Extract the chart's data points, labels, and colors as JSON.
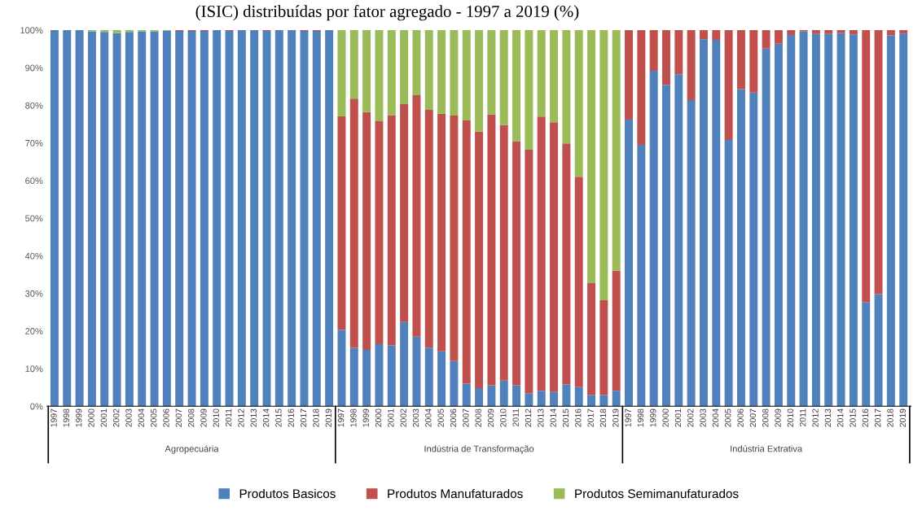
{
  "chart_data": {
    "type": "bar",
    "stacked": true,
    "title": "(ISIC) distribuídas por fator agregado - 1997 a 2019 (%)",
    "categories": [
      "1997",
      "1998",
      "1999",
      "2000",
      "2001",
      "2002",
      "2003",
      "2004",
      "2005",
      "2006",
      "2007",
      "2008",
      "2009",
      "2010",
      "2011",
      "2012",
      "2013",
      "2014",
      "2015",
      "2016",
      "2017",
      "2018",
      "2019",
      "1997",
      "1998",
      "1999",
      "2000",
      "2001",
      "2002",
      "2003",
      "2004",
      "2005",
      "2006",
      "2007",
      "2008",
      "2009",
      "2010",
      "2011",
      "2012",
      "2013",
      "2014",
      "2015",
      "2016",
      "2017",
      "2018",
      "2019",
      "1997",
      "1998",
      "1999",
      "2000",
      "2001",
      "2002",
      "2003",
      "2004",
      "2005",
      "2006",
      "2007",
      "2008",
      "2009",
      "2010",
      "2011",
      "2012",
      "2013",
      "2014",
      "2015",
      "2016",
      "2017",
      "2018",
      "2019"
    ],
    "series": [
      {
        "name": "Produtos Basicos",
        "color": "#4f81bd",
        "values": [
          100,
          100,
          100,
          99.7,
          99.5,
          99.2,
          99.5,
          99.7,
          99.7,
          99.8,
          99.8,
          99.8,
          99.8,
          100,
          99.8,
          100,
          100,
          99.8,
          100,
          100,
          99.8,
          99.8,
          100,
          20.3,
          15.5,
          15.0,
          16.5,
          16.2,
          22.4,
          18.5,
          15.6,
          14.6,
          12.0,
          6.0,
          4.8,
          5.6,
          6.8,
          5.6,
          3.4,
          4.1,
          3.8,
          5.8,
          5.1,
          3.0,
          3.0,
          4.1,
          76.2,
          69.5,
          89.2,
          85.4,
          88.3,
          81.4,
          97.6,
          97.4,
          70.8,
          84.3,
          83.4,
          95.1,
          96.4,
          98.7,
          99.7,
          99.0,
          99.0,
          99.2,
          98.9,
          27.7,
          29.8,
          98.6,
          99.1
        ]
      },
      {
        "name": "Produtos Manufaturados",
        "color": "#c0504d",
        "values": [
          0,
          0,
          0,
          0,
          0,
          0,
          0,
          0,
          0,
          0,
          0.2,
          0.2,
          0.2,
          0,
          0.2,
          0,
          0,
          0.2,
          0,
          0,
          0.2,
          0.2,
          0,
          56.8,
          66.3,
          63.2,
          59.3,
          61.2,
          57.9,
          64.2,
          63.2,
          63.2,
          65.3,
          70.0,
          68.2,
          72.0,
          68.0,
          64.9,
          64.8,
          72.9,
          71.7,
          64.1,
          55.9,
          29.7,
          25.2,
          32.0,
          23.8,
          30.5,
          10.8,
          14.6,
          11.7,
          18.6,
          2.4,
          2.6,
          29.2,
          15.7,
          16.6,
          4.9,
          3.6,
          1.3,
          0.3,
          1.0,
          1.0,
          0.8,
          1.1,
          72.3,
          70.2,
          1.4,
          0.9
        ]
      },
      {
        "name": "Produtos Semimanufaturados",
        "color": "#9bbb59",
        "values": [
          0,
          0,
          0,
          0.3,
          0.5,
          0.8,
          0.5,
          0.3,
          0.3,
          0.2,
          0,
          0,
          0,
          0,
          0,
          0,
          0,
          0,
          0,
          0,
          0,
          0,
          0,
          22.9,
          18.2,
          21.8,
          24.2,
          22.6,
          19.7,
          17.3,
          21.2,
          22.2,
          22.7,
          24.0,
          27.0,
          22.4,
          25.2,
          29.5,
          31.8,
          23.0,
          24.5,
          30.1,
          39.0,
          67.3,
          71.8,
          63.9,
          0,
          0,
          0,
          0,
          0,
          0,
          0,
          0,
          0,
          0,
          0,
          0,
          0,
          0,
          0,
          0,
          0,
          0,
          0,
          0,
          0,
          0,
          0
        ]
      }
    ],
    "ylim": [
      0,
      100
    ],
    "yticks": [
      {
        "value": 0,
        "label": "0%"
      },
      {
        "value": 10,
        "label": "10%"
      },
      {
        "value": 20,
        "label": "20%"
      },
      {
        "value": 30,
        "label": "30%"
      },
      {
        "value": 40,
        "label": "40%"
      },
      {
        "value": 50,
        "label": "50%"
      },
      {
        "value": 60,
        "label": "60%"
      },
      {
        "value": 70,
        "label": "70%"
      },
      {
        "value": 80,
        "label": "80%"
      },
      {
        "value": 90,
        "label": "90%"
      },
      {
        "value": 100,
        "label": "100%"
      }
    ],
    "annotations": [
      "Agropecuária",
      "Indústria de Transformação",
      "Indústria Extrativa"
    ],
    "grid": false,
    "legend": "bottom"
  }
}
